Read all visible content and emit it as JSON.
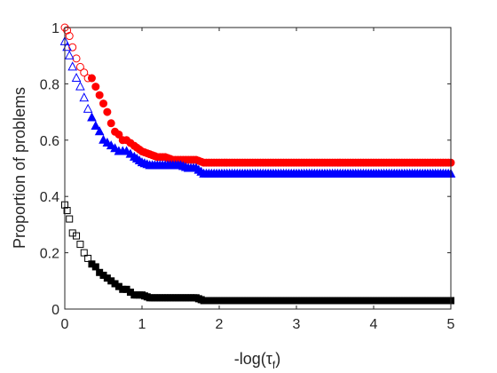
{
  "chart_data": {
    "type": "scatter",
    "xlabel": "-log(τ",
    "xlabel_sub": "f",
    "xlabel_close": ")",
    "ylabel": "Proportion of problems",
    "xlim": [
      0,
      5
    ],
    "ylim": [
      0,
      1
    ],
    "xticks": [
      0,
      1,
      2,
      3,
      4,
      5
    ],
    "xtick_labels": [
      "0",
      "1",
      "2",
      "3",
      "4",
      "5"
    ],
    "yticks": [
      0,
      0.2,
      0.4,
      0.6,
      0.8,
      1
    ],
    "ytick_labels": [
      "0",
      "0.2",
      "0.4",
      "0.6",
      "0.8",
      "1"
    ],
    "grid": false,
    "series": [
      {
        "marker": "circle",
        "color": "#ff0000",
        "x": [
          0,
          0.03,
          0.06,
          0.1,
          0.15,
          0.2,
          0.25,
          0.3,
          0.35,
          0.4,
          0.45,
          0.5,
          0.55,
          0.6,
          0.65,
          0.7,
          0.75,
          0.8,
          0.85,
          0.9,
          1.0,
          1.1,
          1.2,
          1.3,
          1.4,
          1.5,
          1.6,
          1.7,
          1.8,
          1.9,
          2.0,
          2.5,
          3.0,
          3.5,
          4.0,
          4.5,
          5.0
        ],
        "y": [
          1.0,
          0.99,
          0.97,
          0.93,
          0.89,
          0.86,
          0.84,
          0.82,
          0.82,
          0.79,
          0.76,
          0.73,
          0.7,
          0.66,
          0.63,
          0.62,
          0.6,
          0.6,
          0.59,
          0.58,
          0.56,
          0.55,
          0.54,
          0.54,
          0.53,
          0.53,
          0.53,
          0.53,
          0.52,
          0.52,
          0.52,
          0.52,
          0.52,
          0.52,
          0.52,
          0.52,
          0.52
        ]
      },
      {
        "marker": "triangle",
        "color": "#0000ff",
        "x": [
          0,
          0.03,
          0.06,
          0.1,
          0.15,
          0.2,
          0.25,
          0.3,
          0.35,
          0.4,
          0.45,
          0.5,
          0.55,
          0.6,
          0.65,
          0.7,
          0.75,
          0.8,
          0.85,
          0.9,
          1.0,
          1.1,
          1.2,
          1.3,
          1.4,
          1.5,
          1.6,
          1.7,
          1.8,
          1.9,
          2.0,
          2.5,
          3.0,
          3.5,
          4.0,
          4.5,
          5.0
        ],
        "y": [
          0.95,
          0.93,
          0.9,
          0.86,
          0.82,
          0.79,
          0.75,
          0.71,
          0.68,
          0.65,
          0.63,
          0.6,
          0.59,
          0.58,
          0.57,
          0.56,
          0.56,
          0.56,
          0.55,
          0.54,
          0.52,
          0.51,
          0.51,
          0.51,
          0.51,
          0.51,
          0.5,
          0.5,
          0.48,
          0.48,
          0.48,
          0.48,
          0.48,
          0.48,
          0.48,
          0.48,
          0.48
        ]
      },
      {
        "marker": "square",
        "color": "#000000",
        "x": [
          0,
          0.03,
          0.06,
          0.1,
          0.15,
          0.2,
          0.25,
          0.3,
          0.35,
          0.4,
          0.45,
          0.5,
          0.55,
          0.6,
          0.65,
          0.7,
          0.75,
          0.8,
          0.85,
          0.9,
          1.0,
          1.1,
          1.2,
          1.3,
          1.4,
          1.5,
          1.6,
          1.7,
          1.8,
          2.0,
          2.5,
          3.0,
          3.5,
          4.0,
          4.5,
          5.0
        ],
        "y": [
          0.37,
          0.35,
          0.32,
          0.27,
          0.26,
          0.23,
          0.2,
          0.18,
          0.16,
          0.15,
          0.13,
          0.12,
          0.11,
          0.1,
          0.09,
          0.08,
          0.07,
          0.07,
          0.06,
          0.05,
          0.05,
          0.04,
          0.04,
          0.04,
          0.04,
          0.04,
          0.04,
          0.04,
          0.03,
          0.03,
          0.03,
          0.03,
          0.03,
          0.03,
          0.03,
          0.03
        ]
      }
    ]
  }
}
